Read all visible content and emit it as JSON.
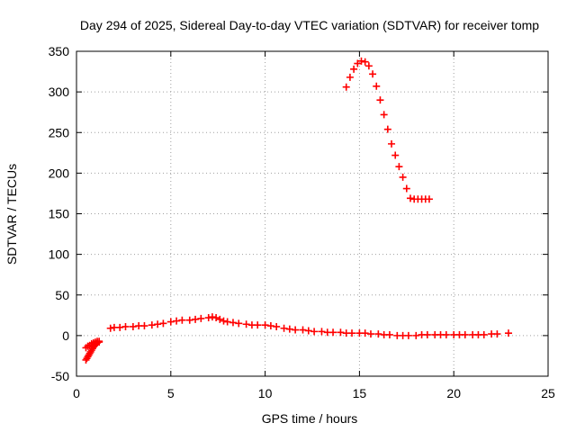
{
  "chart_data": {
    "type": "scatter",
    "title": "Day 294 of 2025, Sidereal Day-to-day VTEC variation (SDTVAR) for receiver tomp",
    "xlabel": "GPS time / hours",
    "ylabel": "SDTVAR / TECUs",
    "xlim": [
      0,
      25
    ],
    "ylim": [
      -50,
      350
    ],
    "xticks": [
      0,
      5,
      10,
      15,
      20,
      25
    ],
    "yticks": [
      -50,
      0,
      50,
      100,
      150,
      200,
      250,
      300,
      350
    ],
    "xtick_labels": [
      "0",
      "5",
      "10",
      "15",
      "20",
      "25"
    ],
    "ytick_labels": [
      "-50",
      "0",
      "50",
      "100",
      "150",
      "200",
      "250",
      "300",
      "350"
    ],
    "grid": true,
    "marker": "plus",
    "color": "#ff0000",
    "series": [
      {
        "name": "SDTVAR",
        "x": [
          0.5,
          0.55,
          0.6,
          0.65,
          0.7,
          0.75,
          0.8,
          0.85,
          0.9,
          0.95,
          1.0,
          1.05,
          1.1,
          1.2,
          0.5,
          0.6,
          0.7,
          0.8,
          0.9,
          1.0,
          1.1,
          1.2,
          1.8,
          2.0,
          2.3,
          2.6,
          3.0,
          3.3,
          3.6,
          4.0,
          4.3,
          4.6,
          5.0,
          5.3,
          5.6,
          6.0,
          6.3,
          6.6,
          7.0,
          7.2,
          7.4,
          7.6,
          7.8,
          8.0,
          8.3,
          8.6,
          9.0,
          9.3,
          9.6,
          10.0,
          10.3,
          10.6,
          11.0,
          11.3,
          11.6,
          12.0,
          12.3,
          12.6,
          13.0,
          13.3,
          13.6,
          14.0,
          14.3,
          14.6,
          15.0,
          15.3,
          15.6,
          16.0,
          16.3,
          16.6,
          17.0,
          17.3,
          17.6,
          18.0,
          18.3,
          18.6,
          19.0,
          19.3,
          19.6,
          20.0,
          20.3,
          20.6,
          21.0,
          21.3,
          21.6,
          22.0,
          22.3,
          22.9,
          14.3,
          14.5,
          14.7,
          14.9,
          15.1,
          15.3,
          15.5,
          15.7,
          15.9,
          16.1,
          16.3,
          16.5,
          16.7,
          16.9,
          17.1,
          17.3,
          17.5,
          17.7,
          17.9,
          18.1,
          18.3,
          18.5,
          18.7
        ],
        "y": [
          -30,
          -28,
          -26,
          -24,
          -22,
          -20,
          -18,
          -16,
          -14,
          -12,
          -11,
          -10,
          -9,
          -8,
          -15,
          -13,
          -12,
          -10,
          -9,
          -8,
          -7,
          -7,
          9,
          10,
          10,
          11,
          11,
          12,
          12,
          13,
          14,
          15,
          17,
          18,
          19,
          19,
          20,
          21,
          22,
          23,
          22,
          20,
          18,
          17,
          16,
          15,
          14,
          13,
          13,
          13,
          12,
          11,
          9,
          8,
          7,
          7,
          6,
          5,
          5,
          4,
          4,
          4,
          3,
          3,
          3,
          3,
          2,
          2,
          1,
          1,
          0,
          0,
          0,
          0,
          1,
          1,
          1,
          1,
          1,
          1,
          1,
          1,
          1,
          1,
          1,
          2,
          2,
          3,
          306,
          318,
          328,
          335,
          338,
          337,
          332,
          322,
          307,
          290,
          272,
          254,
          236,
          222,
          208,
          195,
          181,
          169,
          168,
          168,
          168,
          168,
          168
        ]
      }
    ]
  }
}
